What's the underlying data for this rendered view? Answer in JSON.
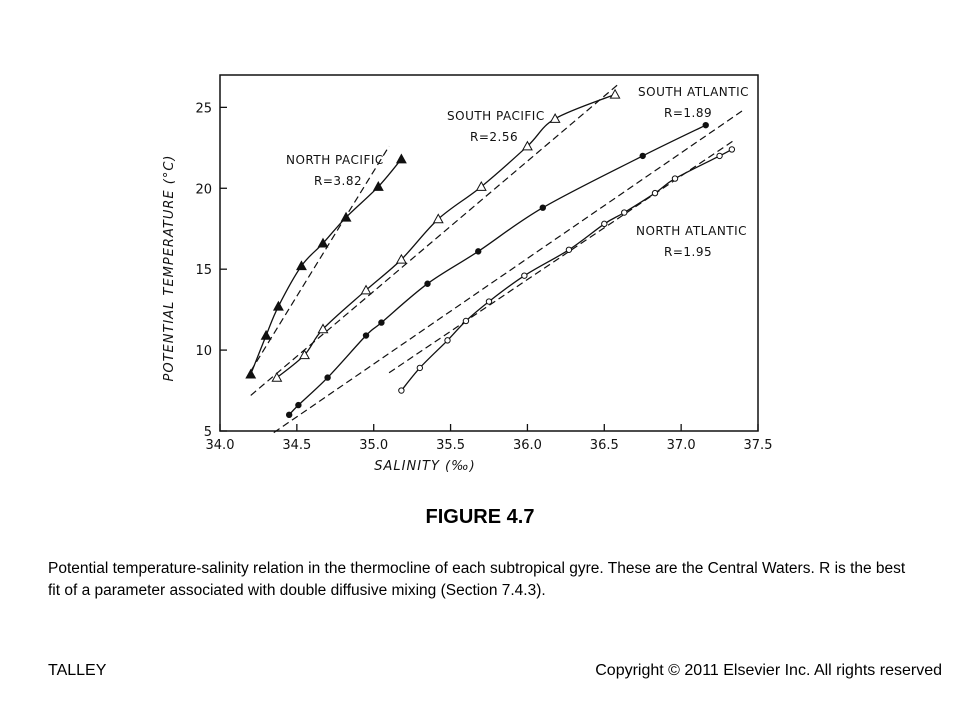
{
  "figure_title": "FIGURE 4.7",
  "caption": "Potential temperature-salinity relation in the thermocline of each subtropical gyre. These are the Central Waters. R is the best fit of a parameter associated with double diffusive mixing (Section 7.4.3).",
  "footer": {
    "author": "TALLEY",
    "copyright": "Copyright © 2011 Elsevier Inc. All rights reserved"
  },
  "chart_data": {
    "type": "scatter",
    "xlabel": "SALINITY (‰)",
    "ylabel": "POTENTIAL TEMPERATURE (°C)",
    "xlim": [
      34.0,
      37.5
    ],
    "ylim": [
      5,
      27
    ],
    "xticks": [
      "34.0",
      "34.5",
      "35.0",
      "35.5",
      "36.0",
      "36.5",
      "37.0",
      "37.5"
    ],
    "yticks": [
      "5",
      "10",
      "15",
      "20",
      "25"
    ],
    "grid": false,
    "series": [
      {
        "label": "NORTH PACIFIC",
        "r_label": "R=3.82",
        "marker": "filled-triangle",
        "points": [
          [
            34.2,
            8.5
          ],
          [
            34.3,
            10.9
          ],
          [
            34.38,
            12.7
          ],
          [
            34.53,
            15.2
          ],
          [
            34.67,
            16.6
          ],
          [
            34.82,
            18.2
          ],
          [
            35.03,
            20.1
          ],
          [
            35.18,
            21.8
          ]
        ],
        "fit_line": [
          [
            34.2,
            8.7
          ],
          [
            35.1,
            22.6
          ]
        ]
      },
      {
        "label": "SOUTH PACIFIC",
        "r_label": "R=2.56",
        "marker": "open-triangle",
        "points": [
          [
            34.37,
            8.3
          ],
          [
            34.55,
            9.7
          ],
          [
            34.67,
            11.3
          ],
          [
            34.95,
            13.7
          ],
          [
            35.18,
            15.6
          ],
          [
            35.42,
            18.1
          ],
          [
            35.7,
            20.1
          ],
          [
            36.0,
            22.6
          ],
          [
            36.18,
            24.3
          ],
          [
            36.57,
            25.8
          ]
        ],
        "fit_line": [
          [
            34.2,
            7.2
          ],
          [
            36.6,
            26.5
          ]
        ]
      },
      {
        "label": "SOUTH ATLANTIC",
        "r_label": "R=1.89",
        "marker": "filled-circle",
        "points": [
          [
            34.45,
            6.0
          ],
          [
            34.51,
            6.6
          ],
          [
            34.7,
            8.3
          ],
          [
            34.95,
            10.9
          ],
          [
            35.05,
            11.7
          ],
          [
            35.35,
            14.1
          ],
          [
            35.68,
            16.1
          ],
          [
            36.1,
            18.8
          ],
          [
            36.75,
            22.0
          ],
          [
            37.16,
            23.9
          ]
        ],
        "fit_line": [
          [
            34.35,
            4.9
          ],
          [
            37.4,
            24.8
          ]
        ]
      },
      {
        "label": "NORTH ATLANTIC",
        "r_label": "R=1.95",
        "marker": "open-circle",
        "points": [
          [
            35.18,
            7.5
          ],
          [
            35.3,
            8.9
          ],
          [
            35.48,
            10.6
          ],
          [
            35.6,
            11.8
          ],
          [
            35.75,
            13.0
          ],
          [
            35.98,
            14.6
          ],
          [
            36.27,
            16.2
          ],
          [
            36.5,
            17.8
          ],
          [
            36.63,
            18.5
          ],
          [
            36.83,
            19.7
          ],
          [
            36.96,
            20.6
          ],
          [
            37.25,
            22.0
          ],
          [
            37.33,
            22.4
          ]
        ],
        "fit_line": [
          [
            35.1,
            8.6
          ],
          [
            37.35,
            23.0
          ]
        ]
      }
    ]
  }
}
